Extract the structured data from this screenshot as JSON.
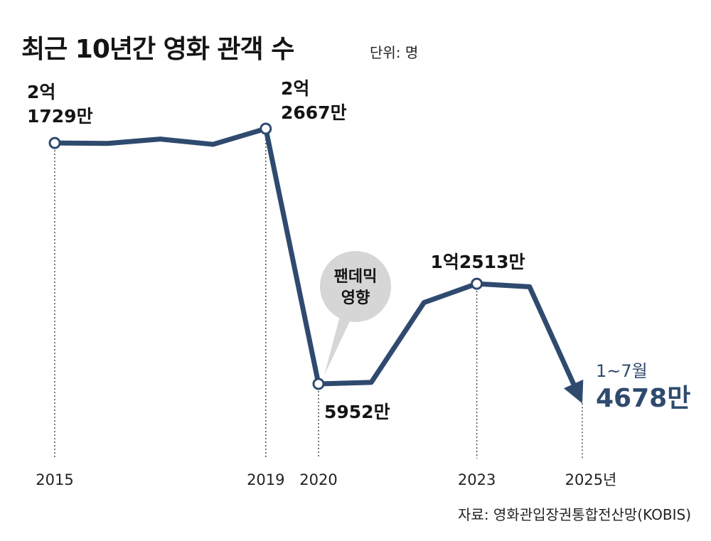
{
  "title": "최근 10년간 영화 관객 수",
  "unit_label": "단위: 명",
  "source": "자료: 영화관입장권통합전산망(KOBIS)",
  "colors": {
    "line": "#2f4a6e",
    "highlight": "#2f4a6e",
    "bubble": "#d6d6d6",
    "text": "#141414"
  },
  "chart_data": {
    "type": "line",
    "title": "최근 10년간 영화 관객 수",
    "unit": "명",
    "x": [
      2015,
      2016,
      2017,
      2018,
      2019,
      2020,
      2021,
      2022,
      2023,
      2024,
      2025
    ],
    "values": [
      217290000,
      217030000,
      219870000,
      216390000,
      226670000,
      59520000,
      60530000,
      112810000,
      125130000,
      123130000,
      46780000
    ],
    "xlim": [
      2015,
      2025
    ],
    "x_ticks": [
      "2015",
      "2019",
      "2020",
      "2023",
      "2025년"
    ],
    "grid": false,
    "labels": [
      {
        "year": 2015,
        "lines": [
          "2억",
          "1729만"
        ]
      },
      {
        "year": 2019,
        "lines": [
          "2억",
          "2667만"
        ]
      },
      {
        "year": 2020,
        "lines": [
          "5952만"
        ]
      },
      {
        "year": 2023,
        "lines": [
          "1억2513만"
        ]
      },
      {
        "year": 2025,
        "lines": [
          "1~7월",
          "4678만"
        ]
      }
    ],
    "annotation": {
      "year": 2020,
      "lines": [
        "팬데믹",
        "영향"
      ]
    }
  }
}
